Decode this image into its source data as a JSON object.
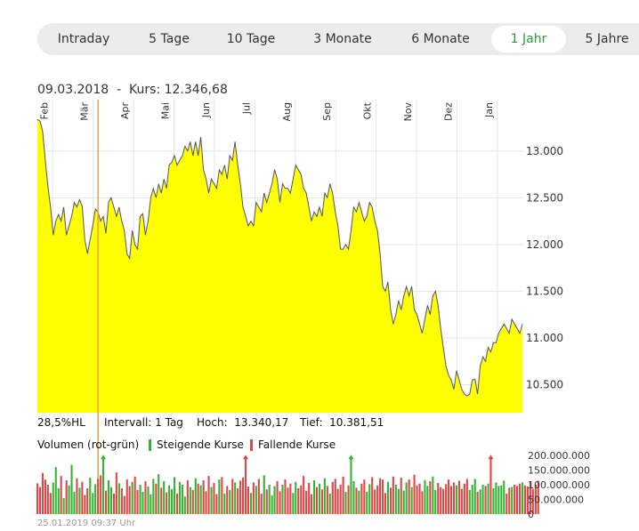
{
  "tabs": [
    {
      "label": "Intraday",
      "active": false
    },
    {
      "label": "5 Tage",
      "active": false
    },
    {
      "label": "10 Tage",
      "active": false
    },
    {
      "label": "3 Monate",
      "active": false
    },
    {
      "label": "6 Monate",
      "active": false
    },
    {
      "label": "1 Jahr",
      "active": true
    },
    {
      "label": "5 Jahre",
      "active": false
    }
  ],
  "info": {
    "date": "09.03.2018",
    "separator": "  -  ",
    "kurs_label": "Kurs: ",
    "kurs_value": "12.346,68"
  },
  "stats": {
    "hl": "28,5%HL",
    "interval": "Intervall: 1 Tag",
    "high": "Hoch:  13.340,17",
    "low": "Tief:  10.381,51"
  },
  "volume_legend": {
    "title": "Volumen (rot-grün)",
    "rising": "Steigende Kurse",
    "falling": "Fallende Kurse"
  },
  "footer": "25.01.2019 09:37 Uhr",
  "colors": {
    "area": "#ffff00",
    "line": "#555555",
    "rising": "#33b533",
    "falling": "#e04848",
    "marker": "#e8a050",
    "active_tab": "#2a9a3a",
    "grid": "#e6e6e6"
  },
  "chart_data": [
    {
      "type": "area",
      "title": "",
      "months": [
        "Feb",
        "Mär",
        "Apr",
        "Mai",
        "Jun",
        "Jul",
        "Aug",
        "Sep",
        "Okt",
        "Nov",
        "Dez",
        "Jan"
      ],
      "ylim": [
        10200,
        13550
      ],
      "yticks": [
        10500,
        11000,
        11500,
        12000,
        12500,
        13000
      ],
      "ytick_labels": [
        "10.500",
        "11.000",
        "11.500",
        "12.000",
        "12.500",
        "13.000"
      ],
      "marker_date": "09.03.2018",
      "series": [
        {
          "name": "Kurs",
          "values": [
            13340,
            13320,
            13210,
            12900,
            12620,
            12400,
            12100,
            12250,
            12320,
            12250,
            12400,
            12100,
            12200,
            12300,
            12450,
            12400,
            12480,
            12410,
            12050,
            11900,
            12050,
            12200,
            12380,
            12346,
            12250,
            12300,
            12120,
            12450,
            12500,
            12400,
            12300,
            12400,
            12250,
            12150,
            11900,
            11850,
            12150,
            12000,
            11950,
            12300,
            12330,
            12100,
            12250,
            12500,
            12600,
            12500,
            12650,
            12550,
            12700,
            12600,
            12850,
            12880,
            12950,
            12850,
            12900,
            12950,
            13050,
            13000,
            13100,
            12950,
            13100,
            12950,
            13150,
            12800,
            12700,
            12550,
            12700,
            12650,
            12600,
            12800,
            12750,
            12850,
            12700,
            12950,
            12900,
            13100,
            12850,
            12650,
            12400,
            12300,
            12200,
            12250,
            12200,
            12450,
            12400,
            12350,
            12550,
            12450,
            12550,
            12650,
            12800,
            12700,
            12450,
            12650,
            12600,
            12600,
            12550,
            12700,
            12850,
            12800,
            12750,
            12600,
            12550,
            12400,
            12250,
            12350,
            12300,
            12400,
            12300,
            12550,
            12500,
            12650,
            12550,
            12350,
            12200,
            11950,
            11950,
            12000,
            11950,
            12150,
            12400,
            12350,
            12450,
            12350,
            12250,
            12300,
            12450,
            12400,
            12250,
            12150,
            11900,
            11550,
            11500,
            11600,
            11300,
            11150,
            11250,
            11400,
            11300,
            11450,
            11550,
            11450,
            11550,
            11300,
            11250,
            11150,
            11050,
            11200,
            11350,
            11250,
            11450,
            11500,
            11350,
            11100,
            10900,
            10700,
            10600,
            10550,
            10450,
            10650,
            10550,
            10450,
            10400,
            10381,
            10400,
            10550,
            10560,
            10400,
            10700,
            10800,
            10750,
            10900,
            10850,
            10950,
            10950,
            11050,
            11100,
            11150,
            11100,
            11050,
            11200,
            11150,
            11100,
            11050,
            11150
          ]
        },
        {
          "name": "Volumen",
          "unit": "Stück",
          "values": [
            105000000,
            92000000,
            140000000,
            118000000,
            100000000,
            72000000,
            108000000,
            160000000,
            88000000,
            130000000,
            55000000,
            115000000,
            98000000,
            168000000,
            76000000,
            122000000,
            90000000,
            110000000,
            65000000,
            88000000,
            124000000,
            72000000,
            102000000,
            120000000,
            132000000,
            196000000,
            80000000,
            115000000,
            92000000,
            70000000,
            142000000,
            105000000,
            88000000,
            62000000,
            118000000,
            95000000,
            110000000,
            128000000,
            82000000,
            100000000,
            76000000,
            112000000,
            94000000,
            68000000,
            120000000,
            104000000,
            136000000,
            90000000,
            112000000,
            74000000,
            98000000,
            85000000,
            126000000,
            70000000,
            110000000,
            100000000,
            60000000,
            115000000,
            92000000,
            82000000,
            122000000,
            104000000,
            98000000,
            115000000,
            78000000,
            130000000,
            92000000,
            106000000,
            68000000,
            118000000,
            126000000,
            70000000,
            96000000,
            82000000,
            120000000,
            108000000,
            88000000,
            114000000,
            125000000,
            196000000,
            94000000,
            72000000,
            108000000,
            96000000,
            120000000,
            70000000,
            132000000,
            84000000,
            100000000,
            64000000,
            95000000,
            112000000,
            78000000,
            100000000,
            118000000,
            90000000,
            104000000,
            72000000,
            110000000,
            88000000,
            98000000,
            130000000,
            80000000,
            106000000,
            68000000,
            115000000,
            92000000,
            104000000,
            84000000,
            122000000,
            96000000,
            70000000,
            110000000,
            120000000,
            86000000,
            100000000,
            128000000,
            76000000,
            98000000,
            196000000,
            112000000,
            90000000,
            80000000,
            104000000,
            118000000,
            76000000,
            102000000,
            126000000,
            84000000,
            98000000,
            122000000,
            118000000,
            72000000,
            110000000,
            90000000,
            128000000,
            100000000,
            86000000,
            124000000,
            80000000,
            108000000,
            118000000,
            92000000,
            134000000,
            98000000,
            104000000,
            78000000,
            116000000,
            96000000,
            112000000,
            128000000,
            82000000,
            106000000,
            92000000,
            86000000,
            102000000,
            118000000,
            96000000,
            108000000,
            98000000,
            114000000,
            86000000,
            104000000,
            120000000,
            82000000,
            100000000,
            120000000,
            76000000,
            84000000,
            100000000,
            96000000,
            104000000,
            196000000,
            88000000,
            108000000,
            96000000,
            98000000,
            114000000,
            70000000,
            90000000,
            92000000,
            100000000,
            96000000,
            104000000,
            108000000,
            98000000,
            94000000,
            112000000,
            86000000,
            100000000,
            114000000
          ]
        },
        {
          "name": "Richtung",
          "values": [
            0,
            0,
            0,
            0,
            0,
            0,
            1,
            1,
            1,
            0,
            1,
            0,
            1,
            1,
            1,
            0,
            1,
            0,
            0,
            0,
            1,
            1,
            1,
            0,
            0,
            1,
            0,
            1,
            1,
            0,
            0,
            1,
            0,
            0,
            0,
            0,
            1,
            0,
            0,
            1,
            1,
            0,
            1,
            1,
            1,
            0,
            1,
            0,
            1,
            0,
            1,
            1,
            1,
            0,
            1,
            1,
            1,
            0,
            1,
            0,
            1,
            0,
            1,
            0,
            0,
            0,
            1,
            0,
            0,
            1,
            0,
            1,
            0,
            1,
            0,
            1,
            0,
            0,
            0,
            0,
            0,
            1,
            0,
            1,
            0,
            0,
            1,
            0,
            1,
            1,
            1,
            0,
            0,
            1,
            0,
            0,
            0,
            1,
            1,
            0,
            0,
            0,
            0,
            0,
            0,
            1,
            0,
            1,
            0,
            1,
            0,
            1,
            0,
            0,
            0,
            0,
            0,
            1,
            0,
            1,
            1,
            0,
            1,
            0,
            0,
            1,
            1,
            0,
            0,
            0,
            0,
            0,
            0,
            1,
            0,
            0,
            1,
            1,
            0,
            1,
            1,
            0,
            1,
            0,
            0,
            0,
            0,
            1,
            1,
            0,
            1,
            1,
            0,
            0,
            0,
            0,
            0,
            0,
            0,
            1,
            0,
            0,
            0,
            0,
            1,
            1,
            1,
            0,
            1,
            1,
            0,
            1,
            0,
            1,
            1,
            1,
            1,
            1,
            0,
            0,
            1,
            0,
            0,
            0,
            1
          ]
        }
      ],
      "volume_ylim": [
        0,
        200000000
      ],
      "volume_ticks": [
        0,
        50000000,
        100000000,
        150000000,
        200000000
      ],
      "volume_tick_labels": [
        "0",
        "50.000.000",
        "100.000.000",
        "150.000.000",
        "200.000.000"
      ]
    }
  ]
}
